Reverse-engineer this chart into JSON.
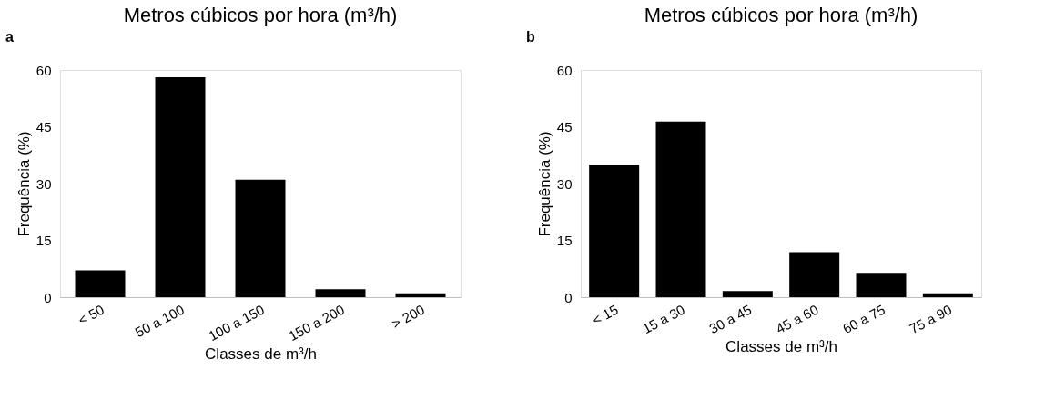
{
  "chart_data": [
    {
      "type": "bar",
      "title": "Metros cúbicos por hora (m³/h)",
      "xlabel": "Classes de m³/h",
      "ylabel": "Frequência (%)",
      "annotations": [
        "a"
      ],
      "categories": [
        "< 50",
        "50 a 100",
        "100 a 150",
        "150 a 200",
        "> 200"
      ],
      "values": [
        7.1,
        58.1,
        31,
        2.1,
        1
      ],
      "color": "#000000",
      "ylim": [
        0,
        60
      ],
      "yticks": [
        0,
        15,
        30,
        45,
        60
      ]
    },
    {
      "type": "bar",
      "title": "Metros cúbicos por hora (m³/h)",
      "xlabel": "Classes de m³/h",
      "ylabel": "Frequência (%)",
      "annotations": [
        "b"
      ],
      "categories": [
        "< 15",
        "15 a 30",
        "30 a 45",
        "45 a 60",
        "60 a 75",
        "75 a 90"
      ],
      "values": [
        35,
        46.4,
        1.6,
        11.9,
        6.4,
        1
      ],
      "color": "#000000",
      "ylim": [
        0,
        60
      ],
      "yticks": [
        0,
        15,
        30,
        45,
        60
      ]
    }
  ]
}
